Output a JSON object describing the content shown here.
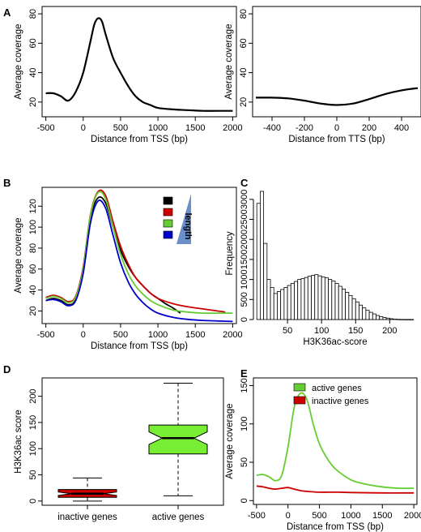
{
  "figure": {
    "panel_labels": [
      "A",
      "B",
      "C",
      "D",
      "E"
    ]
  },
  "chart_data": [
    {
      "panel": "A",
      "type": "line",
      "xlabel": "Distance from TSS (bp)",
      "ylabel": "Average coverage",
      "xlim": [
        -550,
        2050
      ],
      "ylim": [
        10,
        85
      ],
      "xticks": [
        -500,
        0,
        500,
        1000,
        1500,
        2000
      ],
      "yticks": [
        20,
        40,
        60,
        80
      ],
      "series": [
        {
          "color": "#000000",
          "x": [
            -500,
            -400,
            -300,
            -200,
            -100,
            0,
            100,
            150,
            200,
            250,
            300,
            400,
            500,
            600,
            700,
            800,
            900,
            1000,
            1200,
            1400,
            1600,
            1800,
            2000
          ],
          "y": [
            26,
            26,
            24,
            21,
            27,
            40,
            62,
            73,
            77,
            75,
            66,
            50,
            40,
            31,
            24,
            20,
            18,
            16,
            15,
            14.5,
            14,
            14,
            14
          ]
        }
      ]
    },
    {
      "panel": "A-right",
      "type": "line",
      "xlabel": "Distance from TTS (bp)",
      "ylabel": "Average coverage",
      "xlim": [
        -520,
        520
      ],
      "ylim": [
        10,
        85
      ],
      "xticks": [
        -400,
        -200,
        0,
        200,
        400
      ],
      "yticks": [
        20,
        40,
        60,
        80
      ],
      "series": [
        {
          "color": "#000000",
          "x": [
            -500,
            -400,
            -300,
            -200,
            -100,
            0,
            100,
            200,
            300,
            400,
            500
          ],
          "y": [
            23,
            23,
            22.5,
            21,
            19,
            18,
            19,
            22,
            25.5,
            28,
            29.5
          ]
        }
      ]
    },
    {
      "panel": "B",
      "type": "line",
      "xlabel": "Distance from TSS (bp)",
      "ylabel": "Average coverage",
      "xlim": [
        -550,
        2050
      ],
      "ylim": [
        8,
        138
      ],
      "xticks": [
        -500,
        0,
        500,
        1000,
        1500,
        2000
      ],
      "yticks": [
        20,
        40,
        60,
        80,
        100,
        120
      ],
      "legend": {
        "placement": "top-right",
        "triangle_label": "length"
      },
      "series": [
        {
          "color": "#000000",
          "x": [
            -500,
            -400,
            -300,
            -200,
            -100,
            0,
            100,
            200,
            300,
            400,
            500,
            600,
            700,
            800,
            900,
            1000,
            1100,
            1200,
            1300
          ],
          "y": [
            30,
            32,
            30,
            26,
            31,
            60,
            110,
            128,
            123,
            100,
            78,
            63,
            52,
            44,
            37,
            32,
            27,
            23,
            18
          ]
        },
        {
          "color": "#cc0000",
          "x": [
            -500,
            -400,
            -300,
            -200,
            -100,
            0,
            100,
            200,
            300,
            400,
            500,
            600,
            700,
            800,
            900,
            1000,
            1200,
            1400,
            1600,
            1800,
            1900
          ],
          "y": [
            33,
            35,
            33,
            29,
            34,
            62,
            113,
            134,
            130,
            105,
            82,
            65,
            52,
            44,
            37,
            32,
            27,
            24,
            22,
            20,
            19
          ]
        },
        {
          "color": "#66cc33",
          "x": [
            -500,
            -400,
            -300,
            -200,
            -100,
            0,
            100,
            200,
            300,
            400,
            500,
            600,
            700,
            800,
            900,
            1000,
            1200,
            1400,
            1600,
            1800,
            2000
          ],
          "y": [
            32,
            34,
            32,
            28,
            33,
            60,
            112,
            133,
            127,
            100,
            74,
            56,
            44,
            36,
            30,
            26,
            21,
            19,
            18,
            18,
            18
          ]
        },
        {
          "color": "#0000cc",
          "x": [
            -500,
            -400,
            -300,
            -200,
            -100,
            0,
            100,
            200,
            300,
            400,
            500,
            600,
            700,
            800,
            900,
            1000,
            1200,
            1400,
            1600,
            1800,
            2000
          ],
          "y": [
            30,
            31,
            29,
            25,
            30,
            56,
            105,
            125,
            118,
            92,
            66,
            48,
            36,
            28,
            22,
            18,
            14,
            12,
            11,
            10.5,
            10
          ]
        }
      ]
    },
    {
      "panel": "C",
      "type": "bar",
      "subtype": "histogram",
      "xlabel": "H3K36ac-score",
      "ylabel": "Frequency",
      "xlim": [
        0,
        240
      ],
      "ylim": [
        0,
        3300
      ],
      "xticks": [
        50,
        100,
        150,
        200
      ],
      "yticks": [
        0,
        500,
        1000,
        1500,
        2000,
        2500,
        3000
      ],
      "bin_start": 5,
      "bin_width": 5,
      "counts": [
        2900,
        3200,
        1900,
        1000,
        800,
        650,
        700,
        750,
        800,
        850,
        900,
        950,
        1000,
        1020,
        1050,
        1080,
        1100,
        1120,
        1090,
        1060,
        1040,
        1000,
        960,
        900,
        830,
        760,
        680,
        600,
        520,
        440,
        360,
        290,
        230,
        180,
        140,
        100,
        70,
        50,
        35,
        20,
        10,
        5,
        3,
        2,
        1,
        1
      ]
    },
    {
      "panel": "D",
      "type": "box",
      "ylabel": "H3K36ac score",
      "ylim": [
        -8,
        235
      ],
      "yticks": [
        0,
        50,
        100,
        150,
        200
      ],
      "categories": [
        "inactive genes",
        "active genes"
      ],
      "boxes": [
        {
          "category": "inactive genes",
          "color": "#cc0000",
          "min": 0,
          "q1": 7,
          "median": 14,
          "q3": 22,
          "max": 44
        },
        {
          "category": "active genes",
          "color": "#77ee33",
          "min": 10,
          "q1": 90,
          "median": 120,
          "q3": 145,
          "max": 225
        }
      ]
    },
    {
      "panel": "E",
      "type": "line",
      "xlabel": "Distance from TSS (bp)",
      "ylabel": "Average coverage",
      "xlim": [
        -550,
        2050
      ],
      "ylim": [
        -5,
        160
      ],
      "xticks": [
        -500,
        0,
        500,
        1000,
        1500,
        2000
      ],
      "yticks": [
        0,
        50,
        100,
        150
      ],
      "legend": {
        "placement": "top-right"
      },
      "series": [
        {
          "name": "active genes",
          "color": "#66cc33",
          "x": [
            -500,
            -400,
            -300,
            -200,
            -100,
            0,
            100,
            200,
            300,
            400,
            500,
            600,
            700,
            800,
            1000,
            1200,
            1400,
            1600,
            1800,
            2000
          ],
          "y": [
            33,
            34,
            31,
            26,
            33,
            70,
            122,
            140,
            132,
            100,
            74,
            58,
            46,
            38,
            27,
            22,
            19,
            17,
            16,
            16
          ]
        },
        {
          "name": "inactive genes",
          "color": "#cc0000",
          "x": [
            -500,
            -400,
            -300,
            -200,
            -100,
            0,
            100,
            200,
            300,
            500,
            800,
            1000,
            1500,
            2000
          ],
          "y": [
            19,
            18,
            16,
            15,
            16,
            17,
            15,
            13,
            12,
            11,
            11,
            10.5,
            10,
            10
          ]
        }
      ]
    }
  ]
}
